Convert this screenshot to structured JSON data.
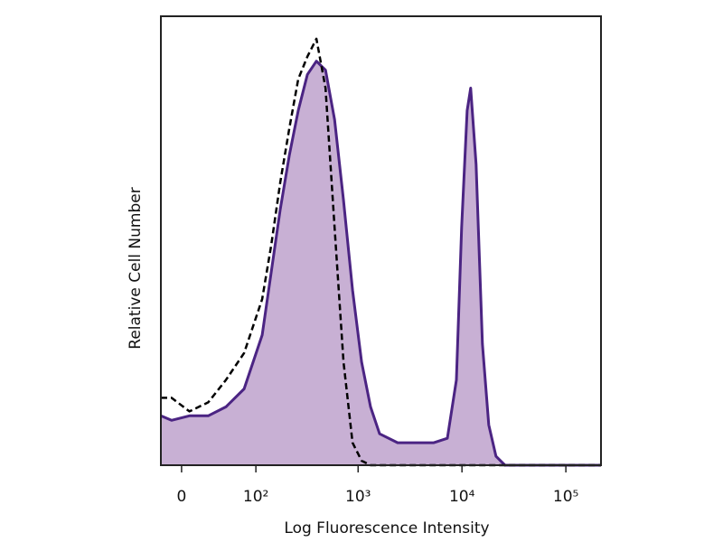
{
  "chart_data": {
    "type": "area",
    "x_label": "Log Fluorescence Intensity",
    "y_label": "Relative Cell Number",
    "xscale": "biexponential",
    "xlim": [
      -19,
      217800
    ],
    "ylim": [
      0,
      100
    ],
    "xticks": [
      0,
      {
        "value": 100,
        "label": "10²"
      },
      {
        "value": 1000,
        "label": "10³"
      },
      {
        "value": 10000,
        "label": "10⁴"
      },
      {
        "value": 100000,
        "label": "10⁵"
      }
    ],
    "x": [
      -19,
      -9,
      7,
      25,
      46,
      75,
      116,
      143,
      176,
      216,
      264,
      324,
      396,
      485,
      593,
      724,
      884,
      1080,
      1318,
      1610,
      2404,
      3590,
      5360,
      7230,
      8830,
      9930,
      11220,
      12130,
      13680,
      15740,
      18110,
      21240,
      25940,
      58070,
      217800
    ],
    "series": [
      {
        "color": "#4b2483",
        "fill": "#c8b0d4",
        "dashed": false,
        "values": [
          11,
          10,
          11,
          11,
          13,
          17,
          29,
          43,
          57,
          69,
          79,
          87,
          90,
          88,
          77,
          59,
          39,
          23,
          13,
          7,
          5,
          5,
          5,
          6,
          19,
          53,
          79,
          84,
          67,
          27,
          9,
          2,
          0,
          0,
          0
        ]
      },
      {
        "color": "#000000",
        "dashed": true,
        "values": [
          15,
          15,
          12,
          14,
          19,
          25,
          37,
          49,
          63,
          75,
          86,
          91,
          95,
          84,
          53,
          23,
          5,
          1,
          0,
          0,
          0,
          0,
          0,
          0,
          0,
          0,
          0,
          0,
          0,
          0,
          0,
          0,
          0,
          0,
          0
        ]
      }
    ]
  }
}
